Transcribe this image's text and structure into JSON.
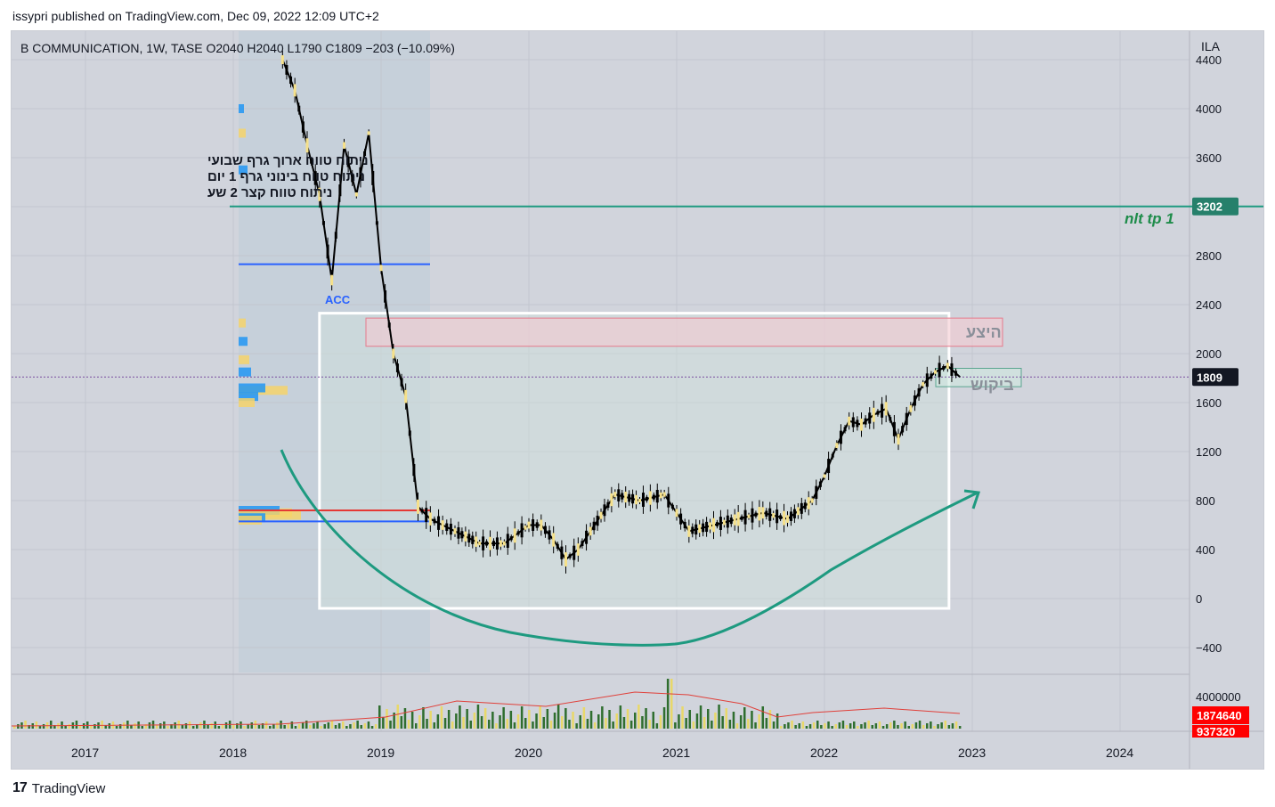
{
  "header": {
    "publisher_line": "issypri published on TradingView.com, Dec 09, 2022 12:09 UTC+2"
  },
  "legend": {
    "text": "B COMMUNICATION, 1W, TASE  O2040  H2040  L1790  C1809  −203 (−10.09%)"
  },
  "currency": "ILA",
  "notes": [
    "ניתוח טווח ארוך גרף שבועי",
    "ניתוח טווח בינוני גרף 1 יום",
    "ניתוח טווח קצר 2 שע"
  ],
  "labels": {
    "supply": "היצע",
    "demand": "ביקוש",
    "target": "nlt tp 1",
    "acc": "ACC"
  },
  "badges": {
    "target_price": "3202",
    "last_price": "1809",
    "volume_avg": "1874640",
    "volume_last": "937320"
  },
  "colors": {
    "bg": "#d1d4dc",
    "teal": "#1e9a80",
    "blue_line": "#2962ff",
    "red_line": "#e53935",
    "price_badge": "#131722",
    "volume_badge": "#ff0000",
    "candle": "#000000"
  },
  "footer": {
    "brand": "TradingView",
    "logo": "tradingview-logo"
  },
  "chart_data": {
    "type": "candlestick",
    "x_ticks": [
      "2017",
      "2018",
      "2019",
      "2020",
      "2021",
      "2022",
      "2023",
      "2024"
    ],
    "y_ticks": [
      4400,
      4000,
      3600,
      3200,
      2800,
      2400,
      2000,
      1600,
      1200,
      800,
      400,
      0,
      -400
    ],
    "y_tick_labels": [
      "4400",
      "4000",
      "3600",
      "",
      "2800",
      "2400",
      "2000",
      "1600",
      "1200",
      "800",
      "400",
      "0",
      "−400"
    ],
    "ylim": [
      -600,
      4800
    ],
    "volume_tick": "4000000",
    "horizontal_levels": [
      {
        "name": "nlt tp 1",
        "value": 3202
      },
      {
        "name": "last",
        "value": 1809
      },
      {
        "name": "blue-upper",
        "value": 2730
      },
      {
        "name": "red",
        "value": 720
      },
      {
        "name": "blue-lower",
        "value": 630
      }
    ],
    "zones": [
      {
        "name": "supply",
        "x_range": [
          "2019-01",
          "2023-02"
        ],
        "price_range": [
          2060,
          2290
        ]
      },
      {
        "name": "demand",
        "x_range": [
          "2022-10",
          "2023-04"
        ],
        "price_range": [
          1730,
          1880
        ]
      },
      {
        "name": "box",
        "x_range": [
          "2018-08",
          "2023-02"
        ],
        "price_range": [
          -80,
          2330
        ]
      }
    ],
    "series": [
      {
        "values": [
          [
            "2018-05",
            4400
          ],
          [
            "2018-06",
            4150
          ],
          [
            "2018-07",
            3700
          ],
          [
            "2018-08",
            3300
          ],
          [
            "2018-09",
            2600
          ],
          [
            "2018-10",
            3700
          ],
          [
            "2018-11",
            3300
          ],
          [
            "2018-12",
            3800
          ],
          [
            "2019-01",
            2700
          ],
          [
            "2019-02",
            2000
          ],
          [
            "2019-03",
            1650
          ],
          [
            "2019-04",
            750
          ],
          [
            "2019-05",
            650
          ],
          [
            "2019-06",
            600
          ],
          [
            "2019-07",
            550
          ],
          [
            "2019-09",
            450
          ],
          [
            "2019-11",
            450
          ],
          [
            "2020-01",
            600
          ],
          [
            "2020-02",
            600
          ],
          [
            "2020-03",
            480
          ],
          [
            "2020-04",
            320
          ],
          [
            "2020-05",
            400
          ],
          [
            "2020-06",
            550
          ],
          [
            "2020-08",
            850
          ],
          [
            "2020-10",
            800
          ],
          [
            "2020-12",
            850
          ],
          [
            "2021-01",
            700
          ],
          [
            "2021-02",
            550
          ],
          [
            "2021-04",
            600
          ],
          [
            "2021-06",
            650
          ],
          [
            "2021-08",
            700
          ],
          [
            "2021-10",
            650
          ],
          [
            "2021-12",
            800
          ],
          [
            "2022-01",
            1000
          ],
          [
            "2022-02",
            1250
          ],
          [
            "2022-03",
            1450
          ],
          [
            "2022-04",
            1420
          ],
          [
            "2022-05",
            1500
          ],
          [
            "2022-06",
            1550
          ],
          [
            "2022-07",
            1300
          ],
          [
            "2022-08",
            1550
          ],
          [
            "2022-09",
            1750
          ],
          [
            "2022-10",
            1850
          ],
          [
            "2022-11",
            1900
          ],
          [
            "2022-12",
            1809
          ]
        ]
      }
    ]
  }
}
